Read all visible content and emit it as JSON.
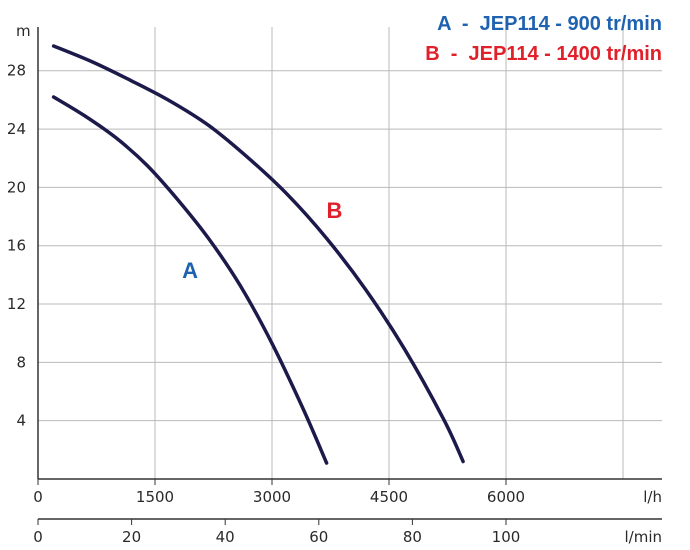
{
  "chart_data": {
    "type": "line",
    "y_unit": "m",
    "x_unit_primary": "l/h",
    "x_unit_secondary": "l/min",
    "xlim": [
      0,
      8000
    ],
    "ylim": [
      0,
      31
    ],
    "y_ticks": [
      4,
      8,
      12,
      16,
      20,
      24,
      28
    ],
    "x_ticks_primary": [
      {
        "value": 0,
        "label": "0"
      },
      {
        "value": 1500,
        "label": "1500"
      },
      {
        "value": 3000,
        "label": "3000"
      },
      {
        "value": 4500,
        "label": "4500"
      },
      {
        "value": 6000,
        "label": "6000"
      }
    ],
    "x_ticks_secondary": [
      {
        "value": 0,
        "label": "0"
      },
      {
        "value": 20,
        "label": "20"
      },
      {
        "value": 40,
        "label": "40"
      },
      {
        "value": 60,
        "label": "60"
      },
      {
        "value": 80,
        "label": "80"
      },
      {
        "value": 100,
        "label": "100"
      }
    ],
    "legend": [
      {
        "key": "A",
        "text": "A  -  JEP114 - 900 tr/min",
        "color": "#1f63b0"
      },
      {
        "key": "B",
        "text": "B  -  JEP114 - 1400 tr/min",
        "color": "#e0202a"
      }
    ],
    "curve_color": "#1c1a4a",
    "series": [
      {
        "name": "A",
        "label_color": "#1f63b0",
        "label_at": {
          "x": 1950,
          "y": 13.8
        },
        "x": [
          200,
          600,
          1000,
          1400,
          1800,
          2200,
          2600,
          3000,
          3400,
          3700
        ],
        "y": [
          26.2,
          24.9,
          23.4,
          21.5,
          19.1,
          16.4,
          13.2,
          9.3,
          4.8,
          1.1
        ]
      },
      {
        "name": "B",
        "label_color": "#e0202a",
        "label_at": {
          "x": 3800,
          "y": 17.9
        },
        "x": [
          200,
          700,
          1200,
          1700,
          2200,
          2700,
          3200,
          3700,
          4200,
          4700,
          5200,
          5450
        ],
        "y": [
          29.7,
          28.6,
          27.3,
          25.9,
          24.2,
          22.0,
          19.5,
          16.5,
          13.0,
          8.9,
          4.1,
          1.2
        ]
      }
    ]
  }
}
